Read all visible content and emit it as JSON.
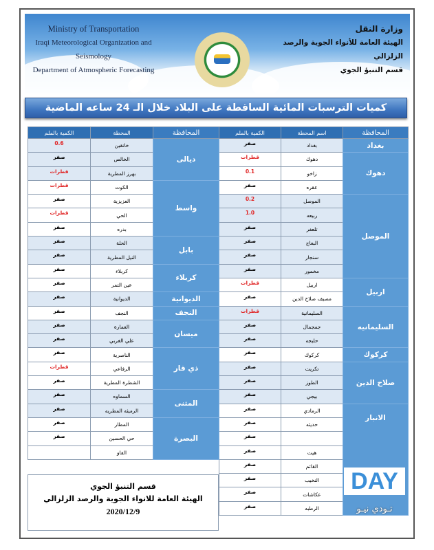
{
  "header": {
    "en": [
      "Ministry of Transportation",
      "Iraqi Meteorological Organization and Seismology",
      "Department of Atmospheric Forecasting"
    ],
    "ar": [
      "وزارة النقل",
      "الهيئة العامة للأنواء الجوية والرصد الزلزالي",
      "قسم التنبؤ الجوي"
    ]
  },
  "title": "كميات الترسبات المائية الساقطة على البلاد خلال الـ 24 ساعه الماضية",
  "right_table": {
    "headers": [
      "المحافظة",
      "اسم المحطة",
      "الكمية بالملم"
    ],
    "groups": [
      {
        "gov": "بغداد",
        "rows": [
          [
            "بغداد",
            "صفر"
          ]
        ]
      },
      {
        "gov": "دهوك",
        "rows": [
          [
            "دهوك",
            "قطرات"
          ],
          [
            "زاخو",
            "0.1"
          ],
          [
            "عقره",
            "صفر"
          ]
        ]
      },
      {
        "gov": "الموصل",
        "rows": [
          [
            "الموصل",
            "0.2"
          ],
          [
            "ربيعه",
            "1.0"
          ],
          [
            "تلعفر",
            "صفر"
          ],
          [
            "البعاج",
            "صفر"
          ],
          [
            "سنجار",
            "صفر"
          ],
          [
            "مخمور",
            "صفر"
          ]
        ]
      },
      {
        "gov": "اربيل",
        "rows": [
          [
            "اربيل",
            "قطرات"
          ],
          [
            "مصيف صلاح الدين",
            "صفر"
          ]
        ]
      },
      {
        "gov": "السليمانيه",
        "rows": [
          [
            "السليمانية",
            "قطرات"
          ],
          [
            "جمجمال",
            "صفر"
          ],
          [
            "حلبجه",
            "صفر"
          ]
        ]
      },
      {
        "gov": "كركوك",
        "rows": [
          [
            "كركوك",
            "صفر"
          ]
        ]
      },
      {
        "gov": "صلاح الدين",
        "rows": [
          [
            "تكريت",
            "صفر"
          ],
          [
            "الطوز",
            "صفر"
          ],
          [
            "بيجي",
            "صفر"
          ]
        ]
      },
      {
        "gov": "الانبار",
        "rows": [
          [
            "الرمادي",
            "صفر"
          ],
          [
            "حديثه",
            "صفر"
          ],
          [
            "",
            "صفر"
          ],
          [
            "هيت",
            "صفر"
          ],
          [
            "القائم",
            "صفر"
          ],
          [
            "النخيب",
            "صفر"
          ],
          [
            "عكاشات",
            "صفر"
          ],
          [
            "الرطبه",
            "صفر"
          ]
        ]
      }
    ]
  },
  "left_table": {
    "headers": [
      "المحافظة",
      "المحطة",
      "الكمية بالملم"
    ],
    "groups": [
      {
        "gov": "ديالى",
        "rows": [
          [
            "خانقين",
            "0.6"
          ],
          [
            "الخالص",
            "صفر"
          ],
          [
            "بهرز المطرية",
            "قطرات"
          ]
        ]
      },
      {
        "gov": "واسط",
        "rows": [
          [
            "الكوت",
            "قطرات"
          ],
          [
            "العزيزية",
            "صفر"
          ],
          [
            "الحي",
            "قطرات"
          ],
          [
            "بدره",
            "صفر"
          ]
        ]
      },
      {
        "gov": "بابل",
        "rows": [
          [
            "الحلة",
            "صفر"
          ],
          [
            "النيل المطرية",
            "صفر"
          ]
        ]
      },
      {
        "gov": "كربلاء",
        "rows": [
          [
            "كربلاء",
            "صفر"
          ],
          [
            "عين التمر",
            "صفر"
          ]
        ]
      },
      {
        "gov": "الديوانية",
        "rows": [
          [
            "الديوانية",
            "صفر"
          ]
        ]
      },
      {
        "gov": "النجف",
        "rows": [
          [
            "النجف",
            "صفر"
          ]
        ]
      },
      {
        "gov": "ميسان",
        "rows": [
          [
            "العمارة",
            "صفر"
          ],
          [
            "علي الغربي",
            "صفر"
          ]
        ]
      },
      {
        "gov": "ذي قار",
        "rows": [
          [
            "الناصرية",
            "صفر"
          ],
          [
            "الرفاعي",
            "قطرات"
          ],
          [
            "الشطرة المطرية",
            "صفر"
          ]
        ]
      },
      {
        "gov": "المثنى",
        "rows": [
          [
            "السماوه",
            "صفر"
          ],
          [
            "الرميثه المطريه",
            "صفر"
          ]
        ]
      },
      {
        "gov": "البصرة",
        "rows": [
          [
            "المطار",
            "صفر"
          ],
          [
            "حي الحسين",
            "صفر"
          ],
          [
            "الفاو",
            ""
          ]
        ]
      }
    ]
  },
  "footer": {
    "line1": "قسم التنبؤ الجوي",
    "line2": "الهيئة العامة للانواء الجوية والرصد الزلزالي",
    "date": "2020/12/9"
  },
  "watermark": {
    "logo": "DAY",
    "arabic": "تـودي نيـو"
  },
  "colors": {
    "header": "#2f6fb3",
    "gov": "#5b9bd5",
    "light_row": "#dde8f4",
    "nonzero_value": "#e02424"
  }
}
